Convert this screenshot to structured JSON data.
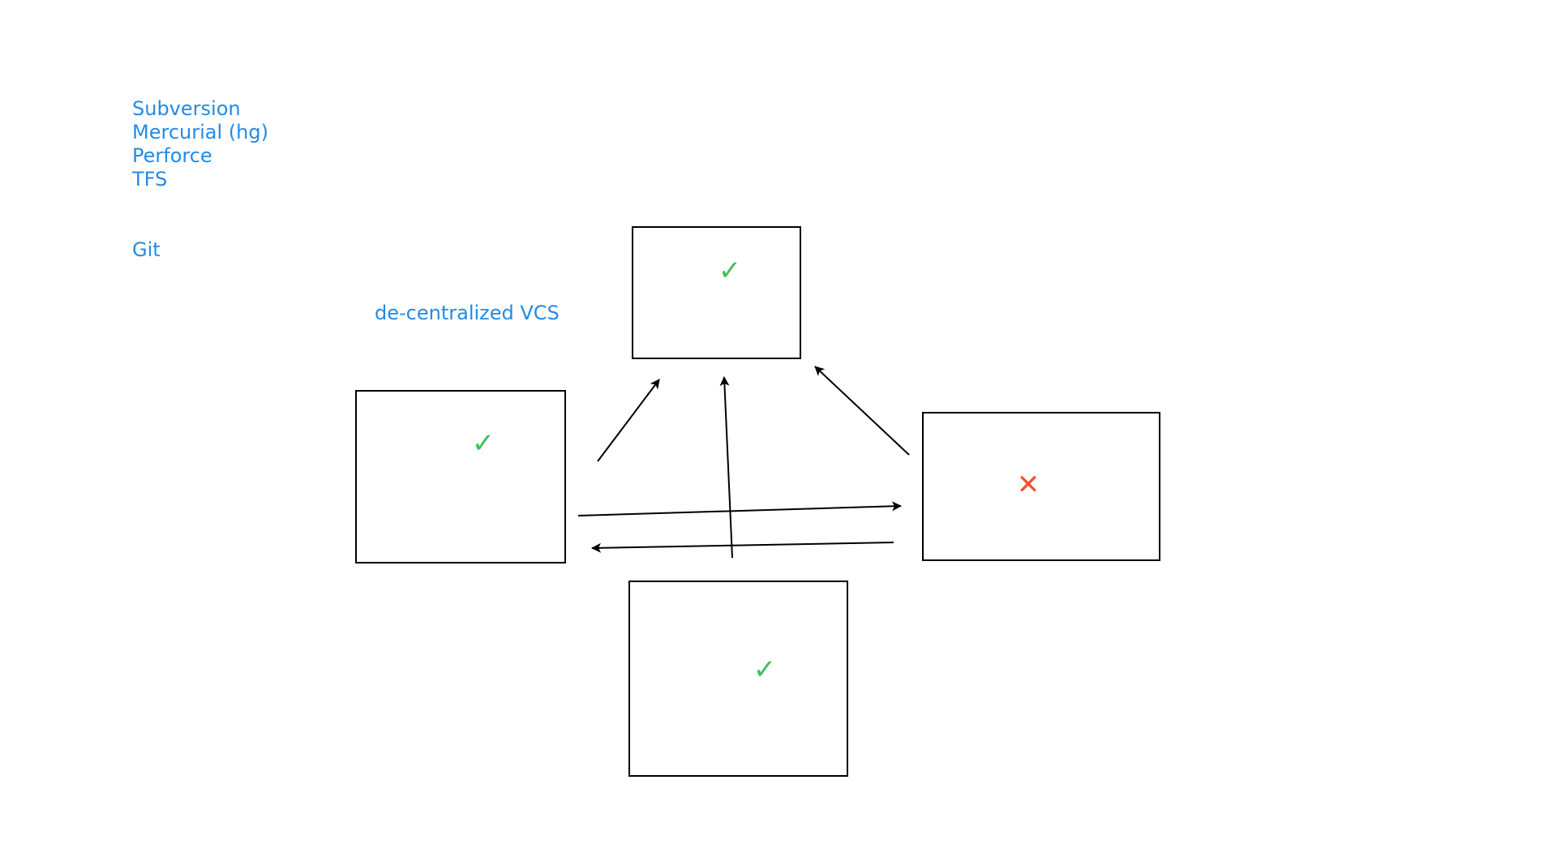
{
  "vcs_list": {
    "items": [
      "Subversion",
      "Mercurial (hg)",
      "Perforce",
      "TFS"
    ],
    "git": "Git"
  },
  "caption": "de-centralized VCS",
  "nodes": [
    {
      "id": "top",
      "status": "ok"
    },
    {
      "id": "left",
      "status": "ok"
    },
    {
      "id": "right",
      "status": "fail"
    },
    {
      "id": "bottom",
      "status": "ok"
    }
  ],
  "edges": [
    {
      "from": "left",
      "to": "top"
    },
    {
      "from": "bottom",
      "to": "top"
    },
    {
      "from": "right",
      "to": "top"
    },
    {
      "from": "left",
      "to": "right"
    },
    {
      "from": "right",
      "to": "left"
    }
  ],
  "symbols": {
    "ok": "✓",
    "fail": "✕"
  },
  "colors": {
    "text_blue": "#228be6",
    "ok_green": "#40c057",
    "fail_red": "#f0522f",
    "stroke": "#000000"
  }
}
